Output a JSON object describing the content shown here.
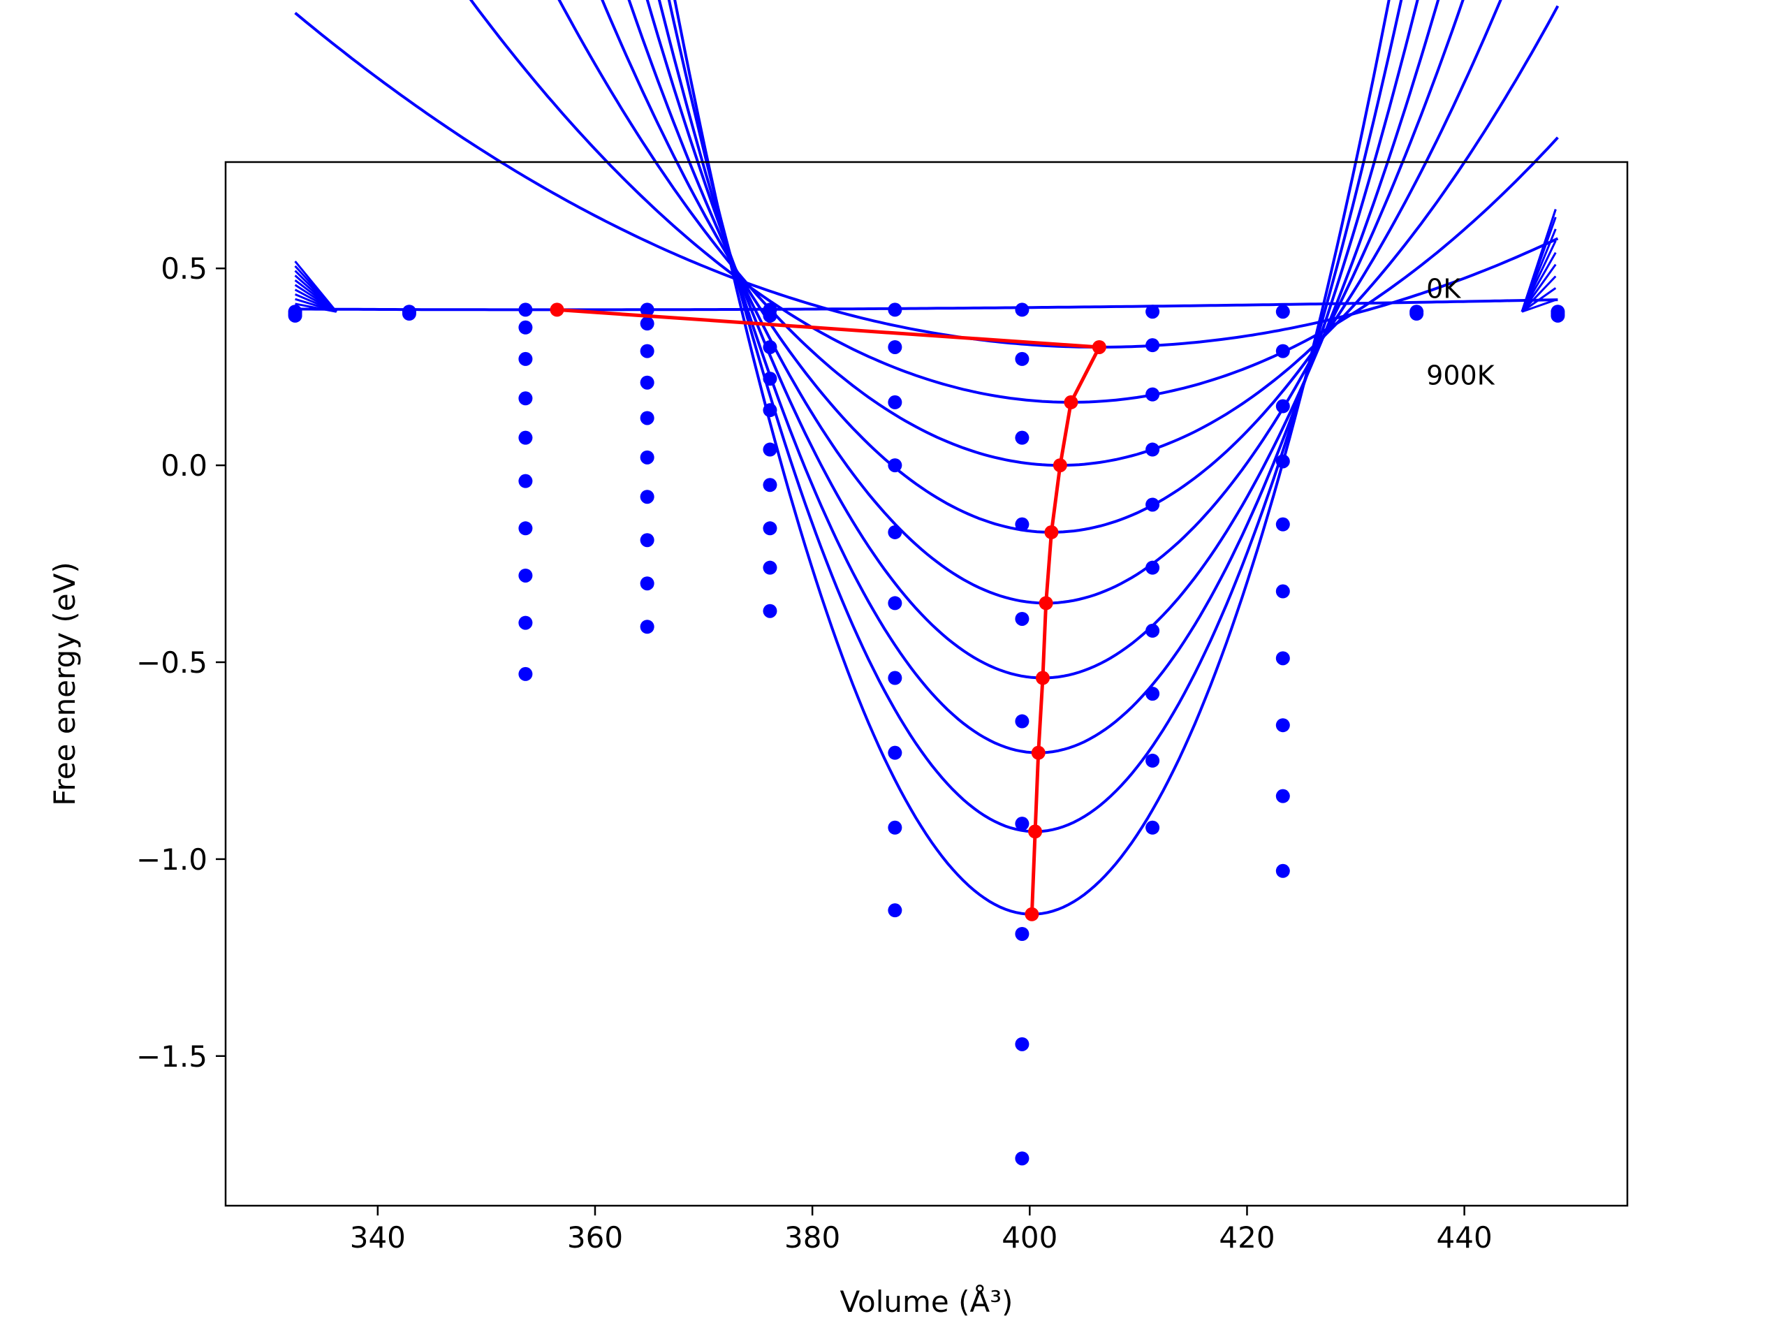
{
  "chart_data": {
    "type": "line",
    "title": "",
    "xlabel": "Volume (Å³)",
    "ylabel": "Free energy (eV)",
    "xlim": [
      326,
      455
    ],
    "ylim": [
      -1.88,
      0.77
    ],
    "x_ticks": [
      340,
      360,
      380,
      400,
      420,
      440
    ],
    "x_tick_labels": [
      "340",
      "360",
      "380",
      "400",
      "420",
      "440"
    ],
    "y_ticks": [
      0.5,
      0.0,
      -0.5,
      -1.0,
      -1.5
    ],
    "y_tick_labels": [
      "0.5",
      "0.0",
      "−0.5",
      "−1.0",
      "−1.5"
    ],
    "grid": false,
    "legend": "none",
    "colors": {
      "curves": "#0000ff",
      "points": "#0000ff",
      "minimum_path": "#ff0000"
    },
    "annotations": [
      {
        "text": "0K",
        "x": 436.5,
        "y": 0.45
      },
      {
        "text": "900K",
        "x": 436.5,
        "y": 0.23
      }
    ],
    "fit_range": [
      332.4,
      448.6
    ],
    "pivot": {
      "x": 336.2,
      "y": 0.39
    },
    "scatter_points": [
      {
        "x": 332.4,
        "y": 0.39
      },
      {
        "x": 332.4,
        "y": 0.385
      },
      {
        "x": 332.4,
        "y": 0.38
      },
      {
        "x": 342.9,
        "y": 0.39
      },
      {
        "x": 342.9,
        "y": 0.385
      },
      {
        "x": 353.6,
        "y": 0.395
      },
      {
        "x": 353.6,
        "y": 0.35
      },
      {
        "x": 353.6,
        "y": 0.27
      },
      {
        "x": 353.6,
        "y": 0.17
      },
      {
        "x": 353.6,
        "y": 0.07
      },
      {
        "x": 353.6,
        "y": -0.04
      },
      {
        "x": 353.6,
        "y": -0.16
      },
      {
        "x": 353.6,
        "y": -0.28
      },
      {
        "x": 353.6,
        "y": -0.4
      },
      {
        "x": 353.6,
        "y": -0.53
      },
      {
        "x": 364.8,
        "y": 0.395
      },
      {
        "x": 364.8,
        "y": 0.36
      },
      {
        "x": 364.8,
        "y": 0.29
      },
      {
        "x": 364.8,
        "y": 0.21
      },
      {
        "x": 364.8,
        "y": 0.12
      },
      {
        "x": 364.8,
        "y": 0.02
      },
      {
        "x": 364.8,
        "y": -0.08
      },
      {
        "x": 364.8,
        "y": -0.19
      },
      {
        "x": 364.8,
        "y": -0.3
      },
      {
        "x": 364.8,
        "y": -0.41
      },
      {
        "x": 376.1,
        "y": 0.395
      },
      {
        "x": 376.1,
        "y": 0.38
      },
      {
        "x": 376.1,
        "y": 0.3
      },
      {
        "x": 376.1,
        "y": 0.22
      },
      {
        "x": 376.1,
        "y": 0.14
      },
      {
        "x": 376.1,
        "y": 0.04
      },
      {
        "x": 376.1,
        "y": -0.05
      },
      {
        "x": 376.1,
        "y": -0.16
      },
      {
        "x": 376.1,
        "y": -0.26
      },
      {
        "x": 376.1,
        "y": -0.37
      },
      {
        "x": 387.6,
        "y": 0.395
      },
      {
        "x": 387.6,
        "y": 0.3
      },
      {
        "x": 387.6,
        "y": 0.16
      },
      {
        "x": 387.6,
        "y": 0.0
      },
      {
        "x": 387.6,
        "y": -0.17
      },
      {
        "x": 387.6,
        "y": -0.35
      },
      {
        "x": 387.6,
        "y": -0.54
      },
      {
        "x": 387.6,
        "y": -0.73
      },
      {
        "x": 387.6,
        "y": -0.92
      },
      {
        "x": 387.6,
        "y": -1.13
      },
      {
        "x": 399.3,
        "y": 0.395
      },
      {
        "x": 399.3,
        "y": 0.27
      },
      {
        "x": 399.3,
        "y": 0.07
      },
      {
        "x": 399.3,
        "y": -0.15
      },
      {
        "x": 399.3,
        "y": -0.39
      },
      {
        "x": 399.3,
        "y": -0.65
      },
      {
        "x": 399.3,
        "y": -0.91
      },
      {
        "x": 399.3,
        "y": -1.19
      },
      {
        "x": 399.3,
        "y": -1.47
      },
      {
        "x": 399.3,
        "y": -1.76
      },
      {
        "x": 411.3,
        "y": 0.39
      },
      {
        "x": 411.3,
        "y": 0.305
      },
      {
        "x": 411.3,
        "y": 0.18
      },
      {
        "x": 411.3,
        "y": 0.04
      },
      {
        "x": 411.3,
        "y": -0.1
      },
      {
        "x": 411.3,
        "y": -0.26
      },
      {
        "x": 411.3,
        "y": -0.42
      },
      {
        "x": 411.3,
        "y": -0.58
      },
      {
        "x": 411.3,
        "y": -0.75
      },
      {
        "x": 411.3,
        "y": -0.92
      },
      {
        "x": 423.3,
        "y": 0.39
      },
      {
        "x": 423.3,
        "y": 0.29
      },
      {
        "x": 423.3,
        "y": 0.15
      },
      {
        "x": 423.3,
        "y": 0.01
      },
      {
        "x": 423.3,
        "y": -0.15
      },
      {
        "x": 423.3,
        "y": -0.32
      },
      {
        "x": 423.3,
        "y": -0.49
      },
      {
        "x": 423.3,
        "y": -0.66
      },
      {
        "x": 423.3,
        "y": -0.84
      },
      {
        "x": 423.3,
        "y": -1.03
      },
      {
        "x": 435.6,
        "y": 0.39
      },
      {
        "x": 435.6,
        "y": 0.385
      },
      {
        "x": 448.6,
        "y": 0.39
      },
      {
        "x": 448.6,
        "y": 0.385
      },
      {
        "x": 448.6,
        "y": 0.38
      }
    ],
    "series": [
      {
        "V0": 356.5,
        "E0": 0.395,
        "B": 3e-06
      },
      {
        "V0": 406.4,
        "E0": 0.3,
        "B": 0.000155
      },
      {
        "V0": 403.8,
        "E0": 0.16,
        "B": 0.000335
      },
      {
        "V0": 402.8,
        "E0": 0.0,
        "B": 0.000556
      },
      {
        "V0": 402.0,
        "E0": -0.17,
        "B": 0.000791
      },
      {
        "V0": 401.5,
        "E0": -0.35,
        "B": 0.00104
      },
      {
        "V0": 401.2,
        "E0": -0.54,
        "B": 0.0013
      },
      {
        "V0": 400.8,
        "E0": -0.73,
        "B": 0.00157
      },
      {
        "V0": 400.5,
        "E0": -0.93,
        "B": 0.00186
      },
      {
        "V0": 400.2,
        "E0": -1.14,
        "B": 0.00215
      }
    ],
    "minimum_path": [
      {
        "x": 356.5,
        "y": 0.395
      },
      {
        "x": 406.4,
        "y": 0.3
      },
      {
        "x": 403.8,
        "y": 0.16
      },
      {
        "x": 402.8,
        "y": 0.0
      },
      {
        "x": 402.0,
        "y": -0.17
      },
      {
        "x": 401.5,
        "y": -0.35
      },
      {
        "x": 401.2,
        "y": -0.54
      },
      {
        "x": 400.8,
        "y": -0.73
      },
      {
        "x": 400.5,
        "y": -0.93
      },
      {
        "x": 400.2,
        "y": -1.14
      }
    ]
  }
}
